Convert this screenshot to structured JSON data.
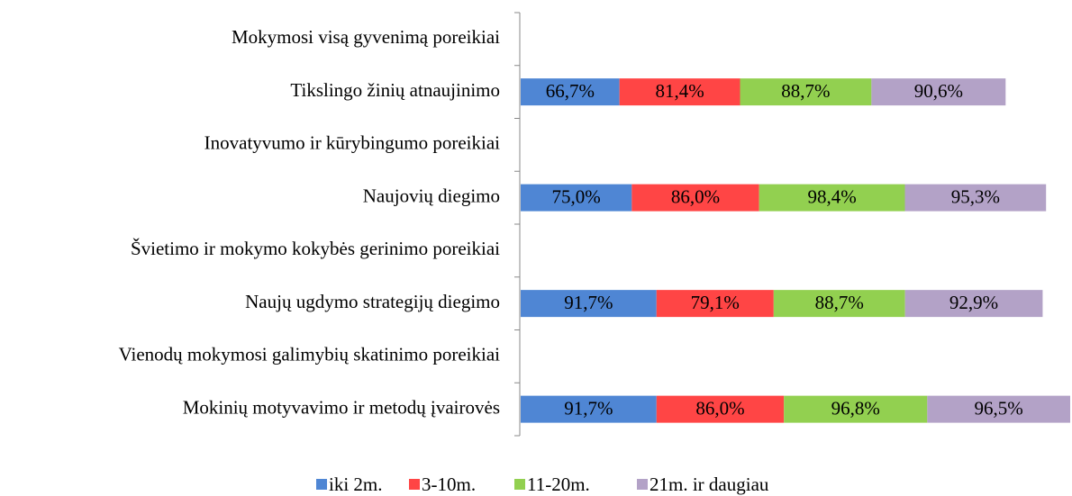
{
  "chart_data": {
    "type": "stacked-barh",
    "categories": [
      "Mokymosi visą gyvenimą poreikiai",
      "Tikslingo žinių atnaujinimo",
      "Inovatyvumo ir kūrybingumo poreikiai",
      "Naujovių diegimo",
      "Švietimo ir mokymo kokybės gerinimo poreikiai",
      "Naujų ugdymo strategijų diegimo",
      "Vienodų mokymosi galimybių skatinimo poreikiai",
      "Mokinių motyvavimo ir metodų įvairovės"
    ],
    "series": [
      {
        "name": "iki 2m.",
        "color": "#4f86d4",
        "values": [
          null,
          66.7,
          null,
          75.0,
          null,
          91.7,
          null,
          91.7
        ],
        "value_labels": [
          null,
          "66,7%",
          null,
          "75,0%",
          null,
          "91,7%",
          null,
          "91,7%"
        ]
      },
      {
        "name": "3-10m.",
        "color": "#ff4545",
        "values": [
          null,
          81.4,
          null,
          86.0,
          null,
          79.1,
          null,
          86.0
        ],
        "value_labels": [
          null,
          "81,4%",
          null,
          "86,0%",
          null,
          "79,1%",
          null,
          "86,0%"
        ]
      },
      {
        "name": "11-20m.",
        "color": "#92d050",
        "values": [
          null,
          88.7,
          null,
          98.4,
          null,
          88.7,
          null,
          96.8
        ],
        "value_labels": [
          null,
          "88,7%",
          null,
          "98,4%",
          null,
          "88,7%",
          null,
          "96,8%"
        ]
      },
      {
        "name": "21m. ir daugiau",
        "color": "#b3a2c7",
        "values": [
          null,
          90.6,
          null,
          95.3,
          null,
          92.9,
          null,
          96.5
        ],
        "value_labels": [
          null,
          "90,6%",
          null,
          "95,3%",
          null,
          "92,9%",
          null,
          "96,5%"
        ]
      }
    ],
    "legend": "bottom"
  }
}
